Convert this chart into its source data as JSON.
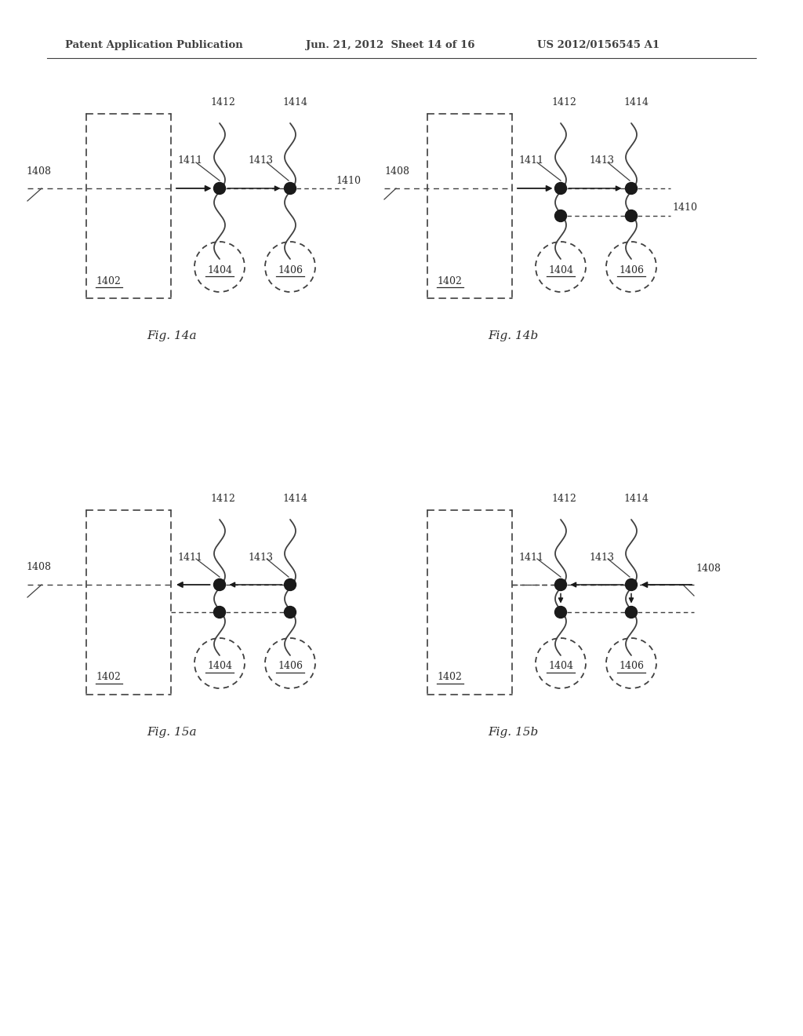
{
  "header_left": "Patent Application Publication",
  "header_mid": "Jun. 21, 2012  Sheet 14 of 16",
  "header_right": "US 2012/0156545 A1",
  "bg_color": "#ffffff",
  "line_color": "#404040",
  "dot_color": "#1a1a1a",
  "label_color": "#2a2a2a",
  "panels": [
    {
      "label": "Fig. 14a",
      "idx": 0,
      "ox": 110,
      "oy": 145
    },
    {
      "label": "Fig. 14b",
      "idx": 1,
      "ox": 545,
      "oy": 145
    },
    {
      "label": "Fig. 15a",
      "idx": 2,
      "ox": 110,
      "oy": 650
    },
    {
      "label": "Fig. 15b",
      "idx": 3,
      "ox": 545,
      "oy": 650
    }
  ]
}
